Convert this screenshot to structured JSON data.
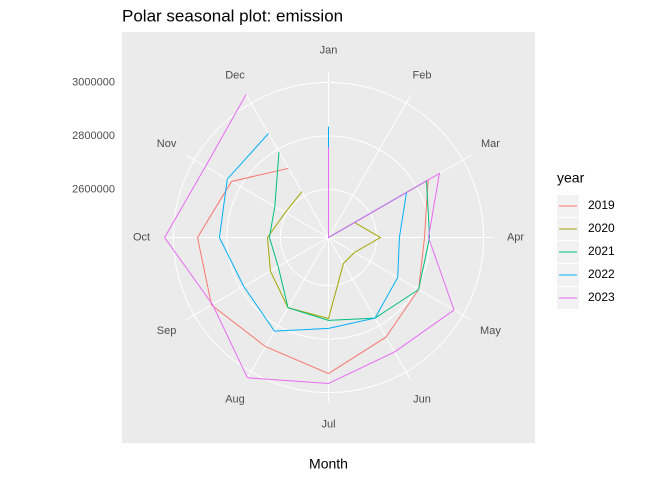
{
  "chart_data": {
    "type": "polar",
    "title": "Polar seasonal plot: emission",
    "x_label": "Month",
    "legend_title": "year",
    "categories": [
      "Jan",
      "Feb",
      "Mar",
      "Apr",
      "May",
      "Jun",
      "Jul",
      "Aug",
      "Sep",
      "Oct",
      "Nov",
      "Dec"
    ],
    "ylim": [
      2420000,
      3037000
    ],
    "yticks": [
      2600000,
      2800000,
      3000000
    ],
    "grid": true,
    "legend": "right",
    "series": [
      {
        "name": "2019",
        "color": "#F8766D",
        "values": [
          2831000,
          2420000,
          2850000,
          2779000,
          2809000,
          2850000,
          2929000,
          2891000,
          2925000,
          2910000,
          2839000,
          2719000
        ]
      },
      {
        "name": "2020",
        "color": "#A3A500",
        "values": [
          2734000,
          2420000,
          2532000,
          2614000,
          2532000,
          2532000,
          2723000,
          2723000,
          2671000,
          2648000,
          2607000,
          2618000
        ]
      },
      {
        "name": "2021",
        "color": "#00BF7D",
        "values": [
          2719000,
          2420000,
          2843000,
          2798000,
          2809000,
          2768000,
          2730000,
          2723000,
          2637000,
          2641000,
          2652000,
          2790000
        ]
      },
      {
        "name": "2022",
        "color": "#00B0F6",
        "values": [
          2835000,
          2420000,
          2757000,
          2685000,
          2719000,
          2768000,
          2760000,
          2824000,
          2786000,
          2828000,
          2857000,
          2869000
        ]
      },
      {
        "name": "2023",
        "color": "#E76BF3",
        "values": [
          2757000,
          2420000,
          2899000,
          2794000,
          2962000,
          2914000,
          2966000,
          3026000,
          2921000,
          3033000,
          2951000,
          3037000
        ]
      }
    ]
  }
}
